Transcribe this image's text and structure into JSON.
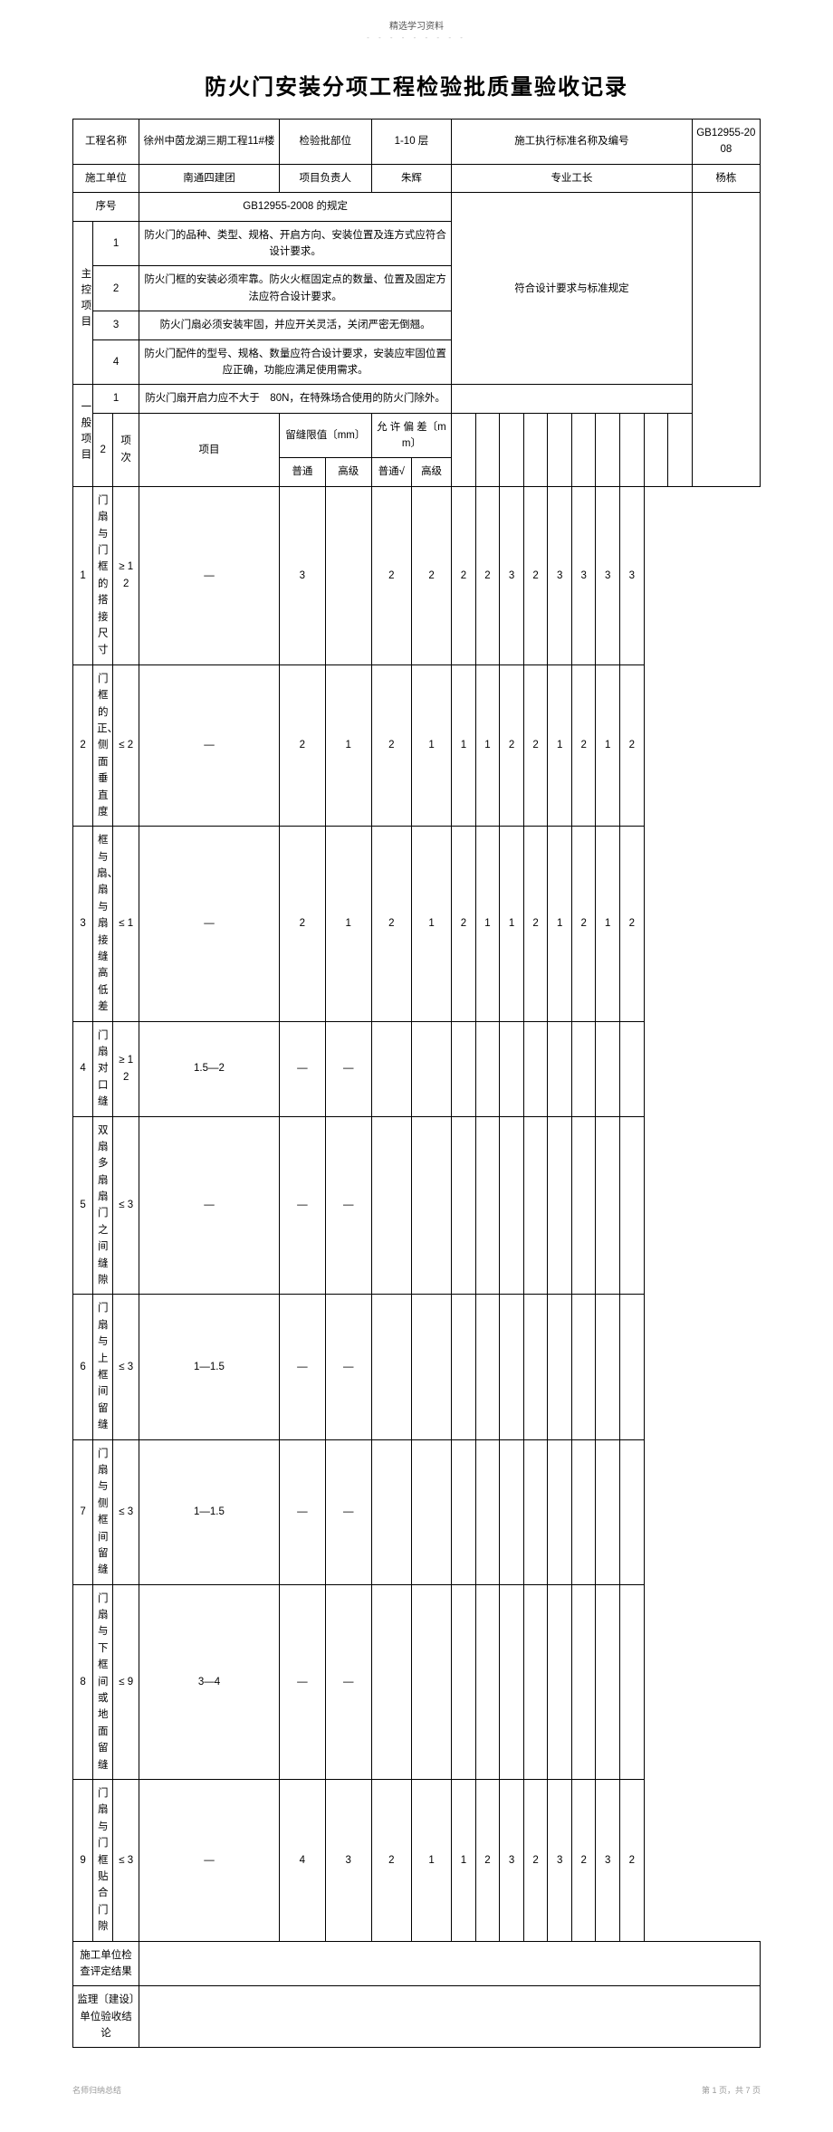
{
  "header_small": "精选学习资料",
  "title": "防火门安装分项工程检验批质量验收记录",
  "row1": {
    "c1": "工程名称",
    "c2": "徐州中茵龙湖三期工程11#楼",
    "c3": "检验批部位",
    "c4": "1-10 层",
    "c5": "施工执行标准名称及编号",
    "c6": "GB12955-2008"
  },
  "row2": {
    "c1": "施工单位",
    "c2": "南通四建团",
    "c3": "项目负责人",
    "c4": "朱辉",
    "c5": "专业工长",
    "c6": "杨栋"
  },
  "seq_label": "序号",
  "spec_label": "GB12955-2008 的规定",
  "main_ctrl_label": "主控项目",
  "main_items": [
    {
      "n": "1",
      "t": "防火门的品种、类型、规格、开启方向、安装位置及连方式应符合设计要求。"
    },
    {
      "n": "2",
      "t": "防火门框的安装必须牢靠。防火火框固定点的数量、位置及固定方法应符合设计要求。"
    },
    {
      "n": "3",
      "t": "防火门扇必须安装牢固，并应开关灵活，关闭严密无倒翘。"
    },
    {
      "n": "4",
      "t": "防火门配件的型号、规格、数量应符合设计要求，安装应牢固位置应正确，功能应满足使用需求。"
    }
  ],
  "main_comply": "符合设计要求与标准规定",
  "general_label": "一般项目",
  "gen_first": {
    "n": "1",
    "t": "防火门扇开启力应不大于　80N，在特殊场合使用的防火门除外。"
  },
  "gen_table_header": {
    "xiangci": "项次",
    "xiangmu": "项目",
    "liufeng": "留缝限值〔mm〕",
    "yunxu": "允 许 偏 差〔mm〕",
    "putong": "普通",
    "gaoji": "高级",
    "putong_chk": "普通√"
  },
  "gen_group_no": "2",
  "gen_rows": [
    {
      "n": "1",
      "name": "门扇与门框的搭接尺寸",
      "lp": "≥ 12",
      "lg": "—",
      "ap": "3",
      "ag": "",
      "m": [
        "2",
        "2",
        "2",
        "2",
        "3",
        "2",
        "3",
        "3",
        "3",
        "3"
      ]
    },
    {
      "n": "2",
      "name": "门框的正、侧面垂直度",
      "lp": "≤ 2",
      "lg": "—",
      "ap": "2",
      "ag": "1",
      "m": [
        "2",
        "1",
        "1",
        "1",
        "2",
        "2",
        "1",
        "2",
        "1",
        "2"
      ]
    },
    {
      "n": "3",
      "name": "框与扇、扇与扇接缝高低差",
      "lp": "≤ 1",
      "lg": "—",
      "ap": "2",
      "ag": "1",
      "m": [
        "2",
        "1",
        "2",
        "1",
        "1",
        "2",
        "1",
        "2",
        "1",
        "2"
      ]
    },
    {
      "n": "4",
      "name": "门扇对口缝",
      "lp": "≥ 12",
      "lg": "1.5—2",
      "ap": "—",
      "ag": "—",
      "m": [
        "",
        "",
        "",
        "",
        "",
        "",
        "",
        "",
        "",
        ""
      ]
    },
    {
      "n": "5",
      "name": "双扇多扇扇门之间缝隙",
      "lp": "≤ 3",
      "lg": "—",
      "ap": "—",
      "ag": "—",
      "m": [
        "",
        "",
        "",
        "",
        "",
        "",
        "",
        "",
        "",
        ""
      ]
    },
    {
      "n": "6",
      "name": "门扇与上框间留缝",
      "lp": "≤ 3",
      "lg": "1—1.5",
      "ap": "—",
      "ag": "—",
      "m": [
        "",
        "",
        "",
        "",
        "",
        "",
        "",
        "",
        "",
        ""
      ]
    },
    {
      "n": "7",
      "name": "门扇与侧框间留缝",
      "lp": "≤ 3",
      "lg": "1—1.5",
      "ap": "—",
      "ag": "—",
      "m": [
        "",
        "",
        "",
        "",
        "",
        "",
        "",
        "",
        "",
        ""
      ]
    },
    {
      "n": "8",
      "name": "门扇与下框间或地面留缝",
      "lp": "≤ 9",
      "lg": "3—4",
      "ap": "—",
      "ag": "—",
      "m": [
        "",
        "",
        "",
        "",
        "",
        "",
        "",
        "",
        "",
        ""
      ]
    },
    {
      "n": "9",
      "name": "门扇与门框贴合门隙",
      "lp": "≤ 3",
      "lg": "—",
      "ap": "4",
      "ag": "3",
      "m": [
        "2",
        "1",
        "1",
        "2",
        "3",
        "2",
        "3",
        "2",
        "3",
        "2"
      ]
    }
  ],
  "footer_rows": {
    "r1": "施工单位检查评定结果",
    "r2": "监理〔建设〕单位验收结论"
  },
  "page_footer_left": "名师归纳总结",
  "page_footer_right": "第 1 页，共 7 页"
}
